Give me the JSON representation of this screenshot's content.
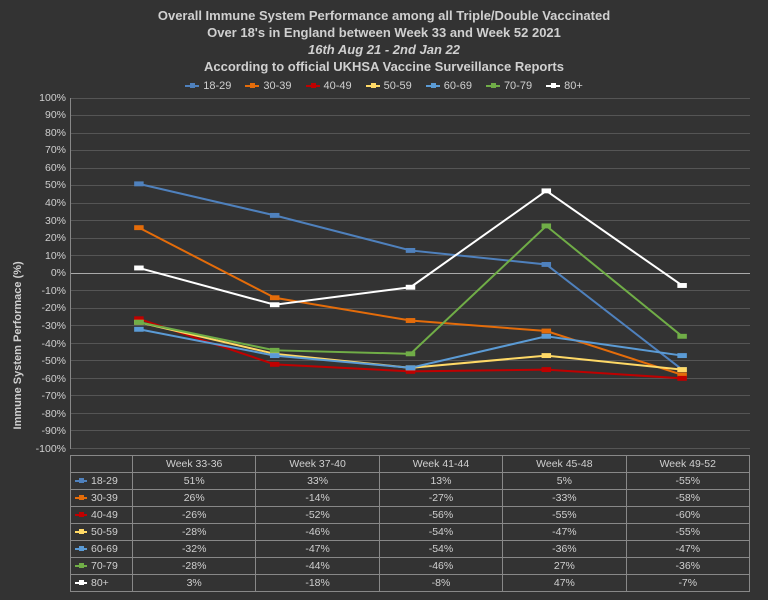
{
  "title": {
    "line1": "Overall Immune System Performance among all Triple/Double Vaccinated",
    "line2": "Over 18's in England between Week 33 and Week 52 2021",
    "line3": "16th Aug 21 - 2nd Jan 22",
    "line4": "According to official UKHSA Vaccine Surveillance Reports"
  },
  "chart": {
    "type": "line",
    "background_color": "#333333",
    "grid_color": "#555555",
    "axis_color": "#888888",
    "text_color": "#d0d0d0",
    "y_axis_title": "Immune System Performace (%)",
    "ylim": [
      -100,
      100
    ],
    "ytick_step": 10,
    "categories": [
      "Week 33-36",
      "Week 37-40",
      "Week 41-44",
      "Week 45-48",
      "Week 49-52"
    ],
    "series": [
      {
        "name": "18-29",
        "color": "#4f81bd",
        "values": [
          51,
          33,
          13,
          5,
          -55
        ]
      },
      {
        "name": "30-39",
        "color": "#e46c0a",
        "values": [
          26,
          -14,
          -27,
          -33,
          -58
        ]
      },
      {
        "name": "40-49",
        "color": "#c00000",
        "values": [
          -26,
          -52,
          -56,
          -55,
          -60
        ]
      },
      {
        "name": "50-59",
        "color": "#ffd966",
        "values": [
          -28,
          -46,
          -54,
          -47,
          -55
        ]
      },
      {
        "name": "60-69",
        "color": "#5b9bd5",
        "values": [
          -32,
          -47,
          -54,
          -36,
          -47
        ]
      },
      {
        "name": "70-79",
        "color": "#70ad47",
        "values": [
          -28,
          -44,
          -46,
          27,
          -36
        ]
      },
      {
        "name": "80+",
        "color": "#ffffff",
        "values": [
          3,
          -18,
          -8,
          47,
          -7
        ]
      }
    ],
    "line_width": 2,
    "marker_size": 5
  }
}
